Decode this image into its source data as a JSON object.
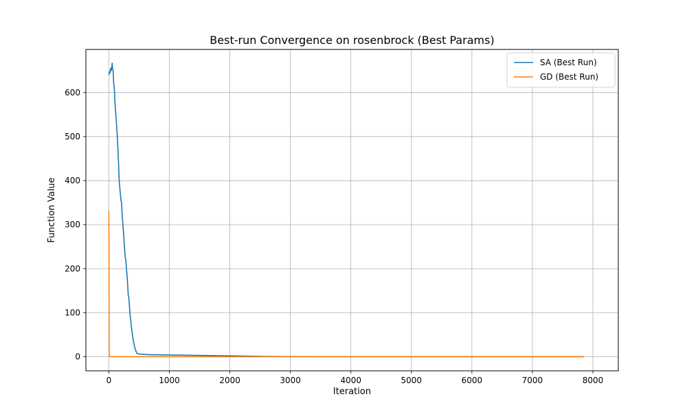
{
  "chart_data": {
    "type": "line",
    "title": "Best-run Convergence on rosenbrock (Best Params)",
    "xlabel": "Iteration",
    "ylabel": "Function Value",
    "xlim": [
      -380,
      8420
    ],
    "ylim": [
      -32,
      698
    ],
    "xticks": [
      0,
      1000,
      2000,
      3000,
      4000,
      5000,
      6000,
      7000,
      8000
    ],
    "yticks": [
      0,
      100,
      200,
      300,
      400,
      500,
      600
    ],
    "grid": true,
    "legend": "top-right",
    "series": [
      {
        "name": "SA (Best Run)",
        "color": "#1f77b4",
        "x": [
          0,
          10,
          20,
          30,
          40,
          50,
          55,
          60,
          70,
          80,
          90,
          100,
          110,
          120,
          130,
          140,
          150,
          160,
          170,
          180,
          190,
          200,
          210,
          220,
          230,
          240,
          250,
          260,
          270,
          280,
          290,
          300,
          310,
          320,
          330,
          340,
          350,
          360,
          370,
          380,
          390,
          400,
          410,
          420,
          430,
          440,
          450,
          460,
          470,
          480,
          490,
          500,
          510,
          520,
          530,
          540,
          550,
          560,
          570,
          580,
          590,
          600,
          610,
          620,
          630,
          640,
          650,
          700,
          1000,
          1500,
          2000,
          2500,
          3000,
          3500,
          4000,
          5000,
          6000,
          7000,
          7850
        ],
        "y": [
          640,
          648,
          645,
          655,
          650,
          660,
          667,
          655,
          650,
          620,
          610,
          580,
          560,
          540,
          520,
          500,
          470,
          440,
          400,
          385,
          370,
          355,
          350,
          320,
          305,
          285,
          265,
          245,
          225,
          220,
          200,
          185,
          165,
          140,
          135,
          115,
          95,
          85,
          70,
          60,
          50,
          40,
          33,
          26,
          20,
          16,
          12,
          9,
          7,
          6.5,
          6.3,
          6.2,
          6.1,
          6.0,
          5.9,
          5.8,
          5.7,
          5.6,
          5.5,
          5.4,
          5.3,
          5.2,
          5.1,
          5.0,
          4.9,
          4.8,
          4.7,
          4.5,
          4.0,
          3.0,
          2.0,
          0.8,
          0.2,
          0.1,
          0.05,
          0.02,
          0.01,
          0.01,
          0.01
        ]
      },
      {
        "name": "GD (Best Run)",
        "color": "#ff7f0e",
        "x": [
          0,
          5,
          10,
          15,
          50,
          1000,
          3000,
          5000,
          7000,
          7850
        ],
        "y": [
          331,
          5,
          1,
          0.3,
          0.05,
          0,
          0,
          0,
          0,
          0
        ]
      }
    ]
  }
}
